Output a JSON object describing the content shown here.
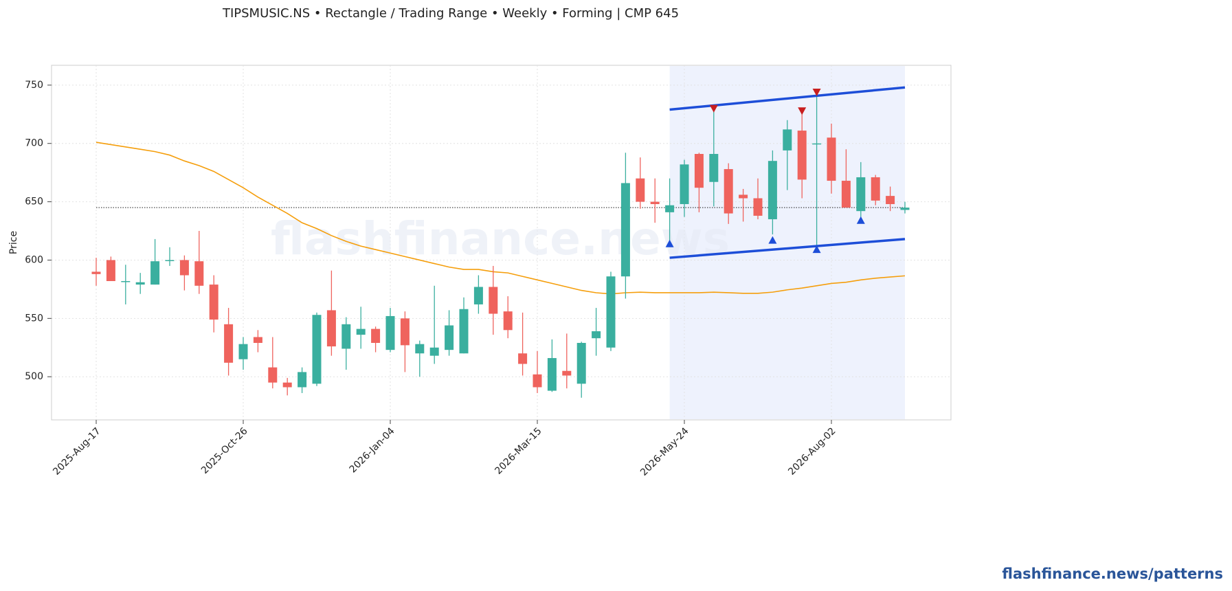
{
  "chart_data": {
    "type": "candlestick",
    "title": "TIPSMUSIC.NS  •  Rectangle / Trading Range  •  Weekly  •  Forming  |  CMP 645",
    "y_label": "Price",
    "watermark": "flashfinance.news",
    "footer": "flashfinance.news/patterns",
    "categories": [
      "2025-Aug-17",
      null,
      null,
      null,
      null,
      null,
      null,
      null,
      null,
      null,
      "2025-Oct-26",
      null,
      null,
      null,
      null,
      null,
      null,
      null,
      null,
      null,
      "2026-Jan-04",
      null,
      null,
      null,
      null,
      null,
      null,
      null,
      null,
      null,
      "2026-Mar-15",
      null,
      null,
      null,
      null,
      null,
      null,
      null,
      null,
      null,
      "2026-May-24",
      null,
      null,
      null,
      null,
      null,
      null,
      null,
      null,
      null,
      "2026-Aug-02",
      null,
      null,
      null,
      null,
      null
    ],
    "open": [
      590,
      600,
      582,
      579,
      579,
      600,
      600,
      599,
      579,
      545,
      515,
      534,
      508,
      495,
      491,
      494,
      557,
      524,
      536,
      541,
      523,
      550,
      520,
      518,
      523,
      520,
      562,
      577,
      556,
      520,
      502,
      488,
      505,
      494,
      533,
      525,
      586,
      670,
      650,
      641,
      648,
      691,
      667,
      678,
      656,
      653,
      635,
      694,
      711,
      700,
      705,
      668,
      642,
      671,
      655,
      643
    ],
    "high": [
      602,
      603,
      596,
      589,
      618,
      611,
      604,
      625,
      587,
      559,
      534,
      540,
      534,
      499,
      508,
      555,
      591,
      551,
      560,
      543,
      559,
      556,
      531,
      578,
      557,
      568,
      587,
      595,
      569,
      555,
      522,
      532,
      537,
      530,
      559,
      590,
      692,
      688,
      670,
      670,
      686,
      692,
      731,
      683,
      661,
      670,
      694,
      720,
      725,
      743,
      717,
      695,
      684,
      673,
      663,
      650
    ],
    "low": [
      578,
      582,
      562,
      571,
      579,
      595,
      574,
      571,
      538,
      501,
      506,
      521,
      490,
      484,
      486,
      492,
      518,
      506,
      524,
      521,
      521,
      504,
      500,
      511,
      518,
      520,
      554,
      536,
      533,
      501,
      486,
      487,
      490,
      482,
      518,
      522,
      567,
      644,
      632,
      615,
      637,
      641,
      646,
      631,
      633,
      635,
      622,
      660,
      653,
      612,
      657,
      645,
      637,
      647,
      642,
      640
    ],
    "close": [
      588,
      582,
      582,
      581,
      599,
      600,
      587,
      578,
      549,
      512,
      528,
      529,
      495,
      491,
      504,
      553,
      526,
      545,
      541,
      529,
      552,
      527,
      528,
      525,
      544,
      558,
      577,
      554,
      540,
      511,
      491,
      516,
      501,
      529,
      539,
      586,
      666,
      650,
      648,
      647,
      682,
      662,
      691,
      640,
      653,
      638,
      685,
      712,
      669,
      700,
      668,
      645,
      671,
      651,
      648,
      645
    ],
    "up_color": "#3aaf9f",
    "down_color": "#ef635d",
    "moving_average": {
      "color": "#f59e0b",
      "values": [
        701,
        699,
        697,
        695,
        693,
        690,
        685,
        681,
        676,
        669,
        662,
        654,
        647,
        640,
        632,
        627,
        621,
        616,
        612,
        609,
        606,
        603,
        600,
        597,
        594,
        592,
        592,
        590,
        589,
        586,
        583,
        580,
        577,
        574,
        572,
        571,
        572,
        572.5,
        572,
        572,
        572,
        572,
        572.5,
        572,
        571.5,
        571.5,
        572.5,
        574.5,
        576,
        578,
        580,
        581,
        583,
        584.5,
        585.5,
        586.5
      ]
    },
    "reference_line": 645,
    "pattern": {
      "start": 39,
      "end": 55,
      "upper": [
        729,
        748
      ],
      "lower": [
        602,
        618
      ],
      "color": "#1d4ed8",
      "fill": "#eef2fd"
    },
    "swing_lows": {
      "index": [
        39,
        46,
        49,
        52
      ],
      "values": [
        614,
        617,
        609,
        634
      ],
      "color": "#1d4ed8"
    },
    "swing_highs": {
      "index": [
        42,
        48,
        49
      ],
      "values": [
        730,
        728,
        744
      ],
      "color": "#c81e1e"
    },
    "ylim": [
      463,
      767
    ],
    "yticks": [
      500,
      550,
      600,
      650,
      700,
      750
    ],
    "grid": true
  }
}
